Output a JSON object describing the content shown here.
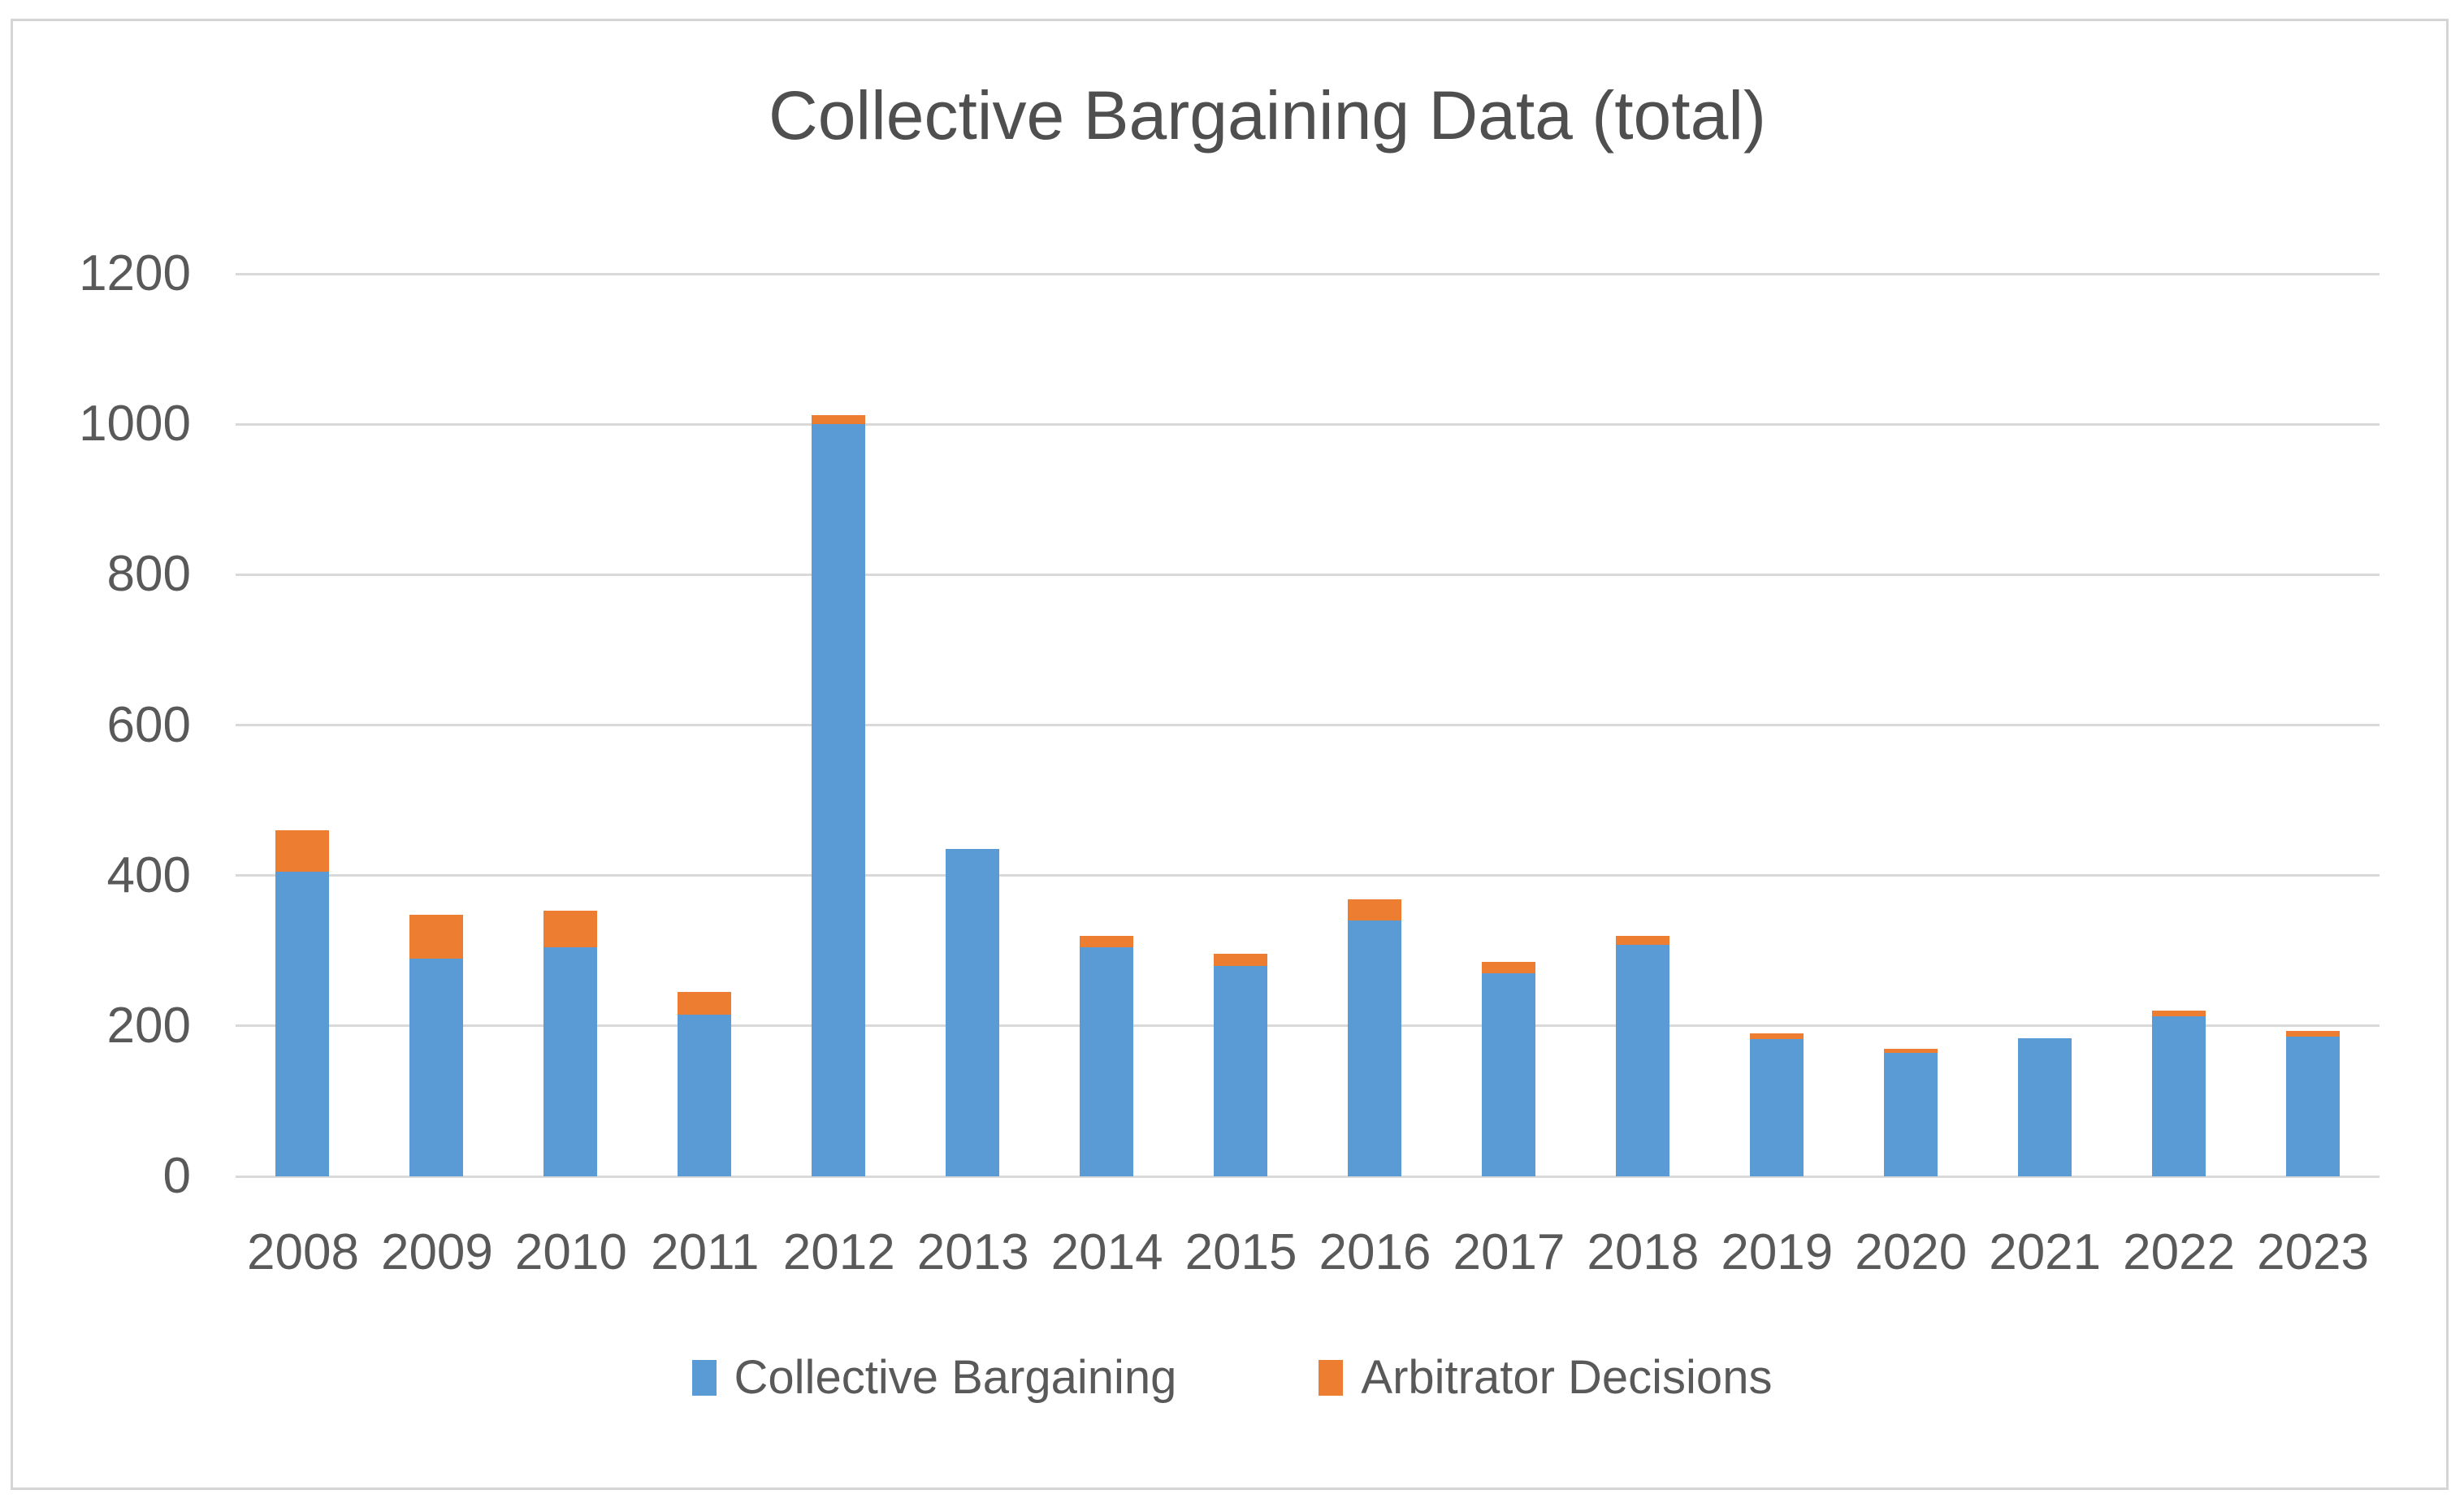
{
  "chart_data": {
    "type": "bar",
    "stacked": true,
    "title": "Collective Bargaining Data (total)",
    "xlabel": "",
    "ylabel": "",
    "categories": [
      "2008",
      "2009",
      "2010",
      "2011",
      "2012",
      "2013",
      "2014",
      "2015",
      "2016",
      "2017",
      "2018",
      "2019",
      "2020",
      "2021",
      "2022",
      "2023"
    ],
    "series": [
      {
        "name": "Collective Bargaining",
        "color": "#5B9BD5",
        "values": [
          405,
          290,
          305,
          215,
          1000,
          435,
          305,
          280,
          340,
          270,
          308,
          183,
          164,
          184,
          213,
          186
        ]
      },
      {
        "name": "Arbitrator Decisions",
        "color": "#ED7D31",
        "values": [
          55,
          58,
          48,
          30,
          12,
          0,
          15,
          16,
          28,
          15,
          12,
          7,
          6,
          0,
          7,
          7
        ]
      }
    ],
    "ylim": [
      0,
      1200
    ],
    "yticks": [
      0,
      200,
      400,
      600,
      800,
      1000,
      1200
    ],
    "grid": true,
    "legend_position": "bottom"
  },
  "style": {
    "gridline_color": "#D9D9D9",
    "axis_text_color": "#595959",
    "title_color": "#4F4F4F",
    "border_color": "#D5D5D5",
    "background": "#FFFFFF"
  }
}
